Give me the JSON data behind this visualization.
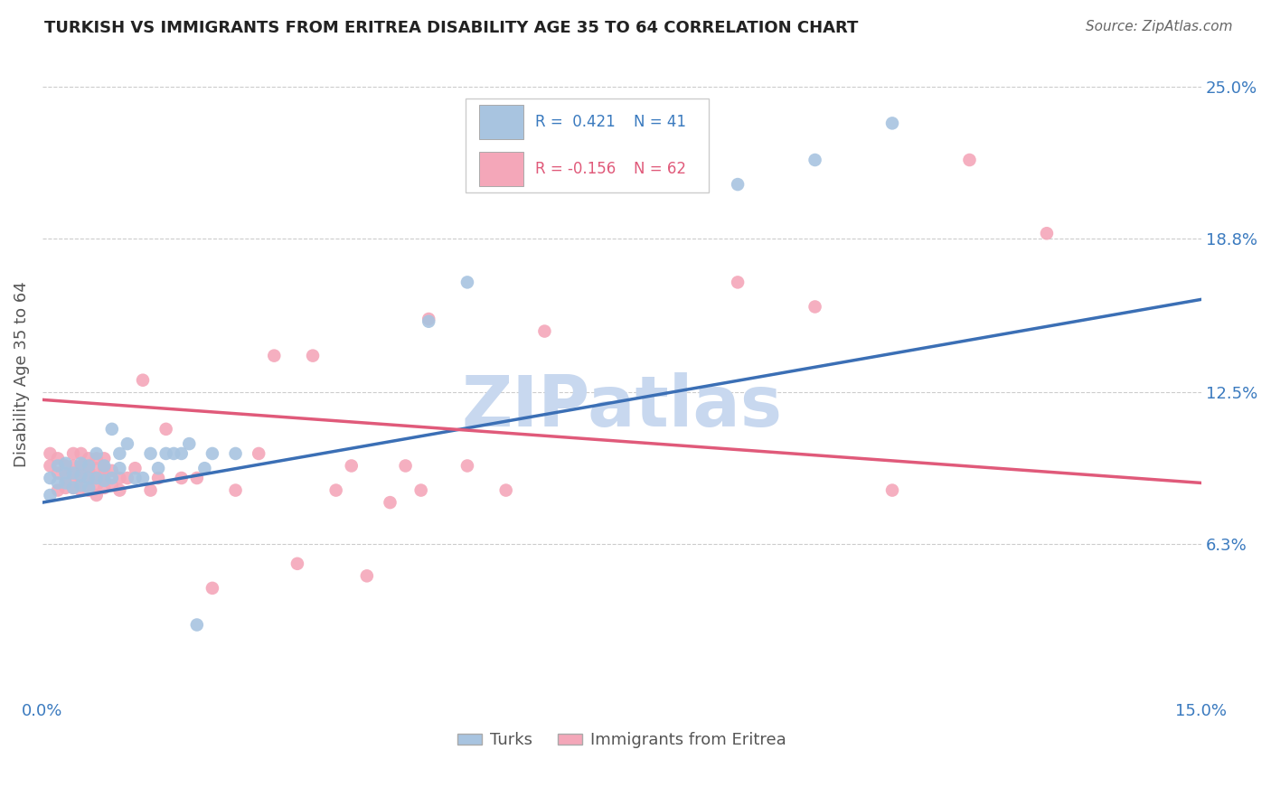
{
  "title": "TURKISH VS IMMIGRANTS FROM ERITREA DISABILITY AGE 35 TO 64 CORRELATION CHART",
  "source": "Source: ZipAtlas.com",
  "ylabel": "Disability Age 35 to 64",
  "xlim": [
    0.0,
    0.15
  ],
  "ylim": [
    0.0,
    0.265
  ],
  "ytick_labels_right": [
    "6.3%",
    "12.5%",
    "18.8%",
    "25.0%"
  ],
  "ytick_values_right": [
    0.063,
    0.125,
    0.188,
    0.25
  ],
  "grid_yticks": [
    0.063,
    0.125,
    0.188,
    0.25
  ],
  "blue_r": 0.421,
  "blue_n": 41,
  "pink_r": -0.156,
  "pink_n": 62,
  "blue_color": "#a8c4e0",
  "pink_color": "#f4a7b9",
  "blue_line_color": "#3b6fb5",
  "pink_line_color": "#e05a7a",
  "watermark_color": "#c8d8ef",
  "legend_blue_fill": "#a8c4e0",
  "legend_pink_fill": "#f4a7b9",
  "turks_x": [
    0.001,
    0.001,
    0.002,
    0.002,
    0.003,
    0.003,
    0.003,
    0.004,
    0.004,
    0.005,
    0.005,
    0.005,
    0.006,
    0.006,
    0.006,
    0.007,
    0.007,
    0.008,
    0.008,
    0.009,
    0.009,
    0.01,
    0.01,
    0.011,
    0.012,
    0.013,
    0.014,
    0.015,
    0.016,
    0.017,
    0.018,
    0.019,
    0.02,
    0.021,
    0.022,
    0.025,
    0.05,
    0.055,
    0.09,
    0.1,
    0.11
  ],
  "turks_y": [
    0.083,
    0.09,
    0.088,
    0.095,
    0.088,
    0.092,
    0.096,
    0.086,
    0.092,
    0.087,
    0.091,
    0.096,
    0.086,
    0.09,
    0.095,
    0.09,
    0.1,
    0.089,
    0.095,
    0.09,
    0.11,
    0.094,
    0.1,
    0.104,
    0.09,
    0.09,
    0.1,
    0.094,
    0.1,
    0.1,
    0.1,
    0.104,
    0.03,
    0.094,
    0.1,
    0.1,
    0.154,
    0.17,
    0.21,
    0.22,
    0.235
  ],
  "eritrea_x": [
    0.001,
    0.001,
    0.002,
    0.002,
    0.002,
    0.003,
    0.003,
    0.003,
    0.004,
    0.004,
    0.004,
    0.004,
    0.005,
    0.005,
    0.005,
    0.005,
    0.006,
    0.006,
    0.006,
    0.006,
    0.007,
    0.007,
    0.007,
    0.007,
    0.007,
    0.008,
    0.008,
    0.008,
    0.008,
    0.009,
    0.009,
    0.01,
    0.01,
    0.011,
    0.012,
    0.013,
    0.014,
    0.015,
    0.016,
    0.018,
    0.02,
    0.022,
    0.025,
    0.028,
    0.03,
    0.033,
    0.035,
    0.038,
    0.04,
    0.042,
    0.045,
    0.047,
    0.049,
    0.05,
    0.055,
    0.06,
    0.065,
    0.09,
    0.1,
    0.11,
    0.12,
    0.13
  ],
  "eritrea_y": [
    0.095,
    0.1,
    0.085,
    0.092,
    0.098,
    0.086,
    0.09,
    0.095,
    0.086,
    0.091,
    0.095,
    0.1,
    0.085,
    0.09,
    0.095,
    0.1,
    0.085,
    0.09,
    0.093,
    0.098,
    0.083,
    0.087,
    0.09,
    0.094,
    0.098,
    0.086,
    0.09,
    0.094,
    0.098,
    0.087,
    0.093,
    0.085,
    0.09,
    0.09,
    0.094,
    0.13,
    0.085,
    0.09,
    0.11,
    0.09,
    0.09,
    0.045,
    0.085,
    0.1,
    0.14,
    0.055,
    0.14,
    0.085,
    0.095,
    0.05,
    0.08,
    0.095,
    0.085,
    0.155,
    0.095,
    0.085,
    0.15,
    0.17,
    0.16,
    0.085,
    0.22,
    0.19
  ],
  "blue_line_x0": 0.0,
  "blue_line_y0": 0.08,
  "blue_line_x1": 0.15,
  "blue_line_y1": 0.163,
  "pink_line_x0": 0.0,
  "pink_line_y0": 0.122,
  "pink_line_x1": 0.15,
  "pink_line_y1": 0.088
}
